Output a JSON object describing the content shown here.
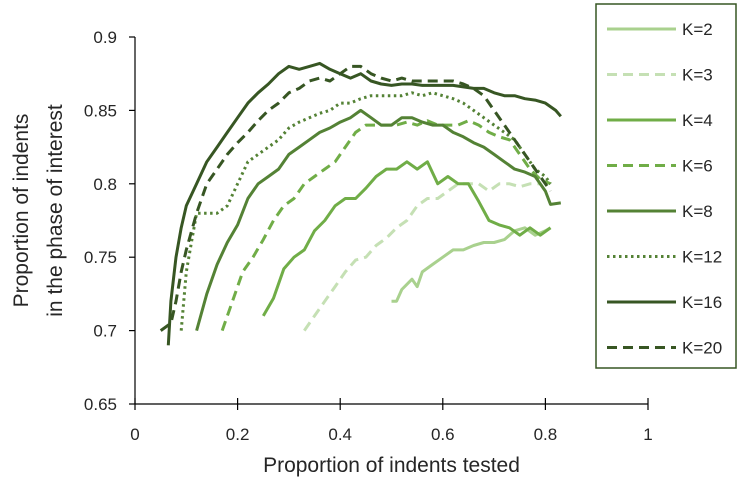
{
  "chart_data": {
    "type": "line",
    "title": "",
    "xlabel": "Proportion of indents tested",
    "ylabel_lines": [
      "Proportion of indents",
      "in the phase of interest"
    ],
    "xlim": [
      0,
      1
    ],
    "ylim": [
      0.65,
      0.9
    ],
    "x_ticks": [
      0,
      0.2,
      0.4,
      0.6,
      0.8,
      1
    ],
    "x_tick_labels": [
      "0",
      "0.2",
      "0.4",
      "0.6",
      "0.8",
      "1"
    ],
    "y_ticks": [
      0.65,
      0.7,
      0.75,
      0.8,
      0.85,
      0.9
    ],
    "y_tick_labels": [
      "0.65",
      "0.7",
      "0.75",
      "0.8",
      "0.85",
      "0.9"
    ],
    "grid": false,
    "legend_position": "right",
    "legend_border_color": "#375623",
    "series": [
      {
        "name": "K=2",
        "color": "#a9d18e",
        "dash": "solid",
        "x": [
          0.5,
          0.51,
          0.52,
          0.54,
          0.55,
          0.56,
          0.58,
          0.6,
          0.62,
          0.64,
          0.66,
          0.68,
          0.7,
          0.72,
          0.74,
          0.76,
          0.78,
          0.8,
          0.81
        ],
        "y": [
          0.72,
          0.72,
          0.728,
          0.735,
          0.73,
          0.74,
          0.745,
          0.75,
          0.755,
          0.755,
          0.758,
          0.76,
          0.76,
          0.762,
          0.768,
          0.77,
          0.765,
          0.768,
          0.77
        ]
      },
      {
        "name": "K=3",
        "color": "#c5e0b4",
        "dash": "dash",
        "x": [
          0.33,
          0.35,
          0.37,
          0.39,
          0.41,
          0.43,
          0.45,
          0.47,
          0.49,
          0.51,
          0.53,
          0.55,
          0.57,
          0.59,
          0.61,
          0.63,
          0.65,
          0.67,
          0.69,
          0.71,
          0.73,
          0.75,
          0.77,
          0.79
        ],
        "y": [
          0.7,
          0.71,
          0.72,
          0.73,
          0.74,
          0.748,
          0.75,
          0.758,
          0.763,
          0.77,
          0.775,
          0.785,
          0.79,
          0.79,
          0.795,
          0.8,
          0.8,
          0.8,
          0.795,
          0.8,
          0.8,
          0.798,
          0.8,
          0.8
        ]
      },
      {
        "name": "K=4",
        "color": "#70ad47",
        "dash": "solid",
        "x": [
          0.25,
          0.27,
          0.29,
          0.31,
          0.33,
          0.35,
          0.37,
          0.39,
          0.41,
          0.43,
          0.45,
          0.47,
          0.49,
          0.51,
          0.53,
          0.55,
          0.57,
          0.59,
          0.61,
          0.63,
          0.65,
          0.67,
          0.69,
          0.71,
          0.73,
          0.75,
          0.77,
          0.79,
          0.81
        ],
        "y": [
          0.71,
          0.722,
          0.742,
          0.75,
          0.755,
          0.768,
          0.775,
          0.785,
          0.79,
          0.79,
          0.797,
          0.805,
          0.81,
          0.81,
          0.815,
          0.81,
          0.815,
          0.8,
          0.805,
          0.8,
          0.8,
          0.788,
          0.775,
          0.772,
          0.77,
          0.765,
          0.77,
          0.765,
          0.77
        ]
      },
      {
        "name": "K=6",
        "color": "#70ad47",
        "dash": "dash",
        "x": [
          0.17,
          0.19,
          0.21,
          0.23,
          0.25,
          0.27,
          0.29,
          0.31,
          0.33,
          0.35,
          0.37,
          0.39,
          0.41,
          0.43,
          0.45,
          0.47,
          0.49,
          0.51,
          0.53,
          0.55,
          0.57,
          0.59,
          0.61,
          0.63,
          0.65,
          0.67,
          0.69,
          0.71,
          0.73,
          0.75,
          0.77,
          0.79,
          0.81
        ],
        "y": [
          0.7,
          0.72,
          0.74,
          0.75,
          0.762,
          0.775,
          0.785,
          0.79,
          0.8,
          0.805,
          0.81,
          0.815,
          0.825,
          0.835,
          0.84,
          0.84,
          0.84,
          0.84,
          0.842,
          0.84,
          0.843,
          0.84,
          0.84,
          0.84,
          0.843,
          0.84,
          0.835,
          0.832,
          0.83,
          0.82,
          0.81,
          0.803,
          0.8
        ]
      },
      {
        "name": "K=8",
        "color": "#548235",
        "dash": "solid",
        "x": [
          0.12,
          0.14,
          0.16,
          0.18,
          0.2,
          0.22,
          0.24,
          0.26,
          0.28,
          0.3,
          0.32,
          0.34,
          0.36,
          0.38,
          0.4,
          0.42,
          0.44,
          0.46,
          0.48,
          0.5,
          0.52,
          0.54,
          0.56,
          0.58,
          0.6,
          0.62,
          0.64,
          0.66,
          0.68,
          0.7,
          0.72,
          0.74,
          0.76,
          0.78,
          0.8,
          0.81,
          0.83
        ],
        "y": [
          0.7,
          0.725,
          0.745,
          0.76,
          0.772,
          0.79,
          0.8,
          0.805,
          0.81,
          0.82,
          0.825,
          0.83,
          0.835,
          0.838,
          0.842,
          0.845,
          0.85,
          0.845,
          0.84,
          0.84,
          0.845,
          0.845,
          0.842,
          0.84,
          0.84,
          0.835,
          0.832,
          0.828,
          0.825,
          0.82,
          0.815,
          0.81,
          0.808,
          0.805,
          0.795,
          0.786,
          0.787
        ]
      },
      {
        "name": "K=12",
        "color": "#548235",
        "dash": "dot",
        "x": [
          0.09,
          0.1,
          0.11,
          0.12,
          0.14,
          0.16,
          0.18,
          0.2,
          0.22,
          0.24,
          0.26,
          0.28,
          0.3,
          0.32,
          0.34,
          0.36,
          0.38,
          0.4,
          0.42,
          0.44,
          0.46,
          0.48,
          0.5,
          0.52,
          0.54,
          0.56,
          0.58,
          0.6,
          0.62,
          0.64,
          0.66,
          0.68,
          0.7,
          0.72,
          0.74,
          0.76,
          0.78,
          0.8,
          0.81
        ],
        "y": [
          0.7,
          0.74,
          0.76,
          0.78,
          0.78,
          0.78,
          0.785,
          0.8,
          0.815,
          0.82,
          0.825,
          0.83,
          0.838,
          0.842,
          0.845,
          0.848,
          0.85,
          0.855,
          0.855,
          0.858,
          0.86,
          0.86,
          0.86,
          0.86,
          0.862,
          0.86,
          0.862,
          0.86,
          0.858,
          0.855,
          0.85,
          0.845,
          0.84,
          0.835,
          0.83,
          0.82,
          0.81,
          0.805,
          0.8
        ]
      },
      {
        "name": "K=16",
        "color": "#375623",
        "dash": "solid",
        "x": [
          0.065,
          0.07,
          0.08,
          0.09,
          0.1,
          0.12,
          0.14,
          0.16,
          0.18,
          0.2,
          0.22,
          0.24,
          0.26,
          0.28,
          0.3,
          0.32,
          0.34,
          0.36,
          0.38,
          0.4,
          0.42,
          0.44,
          0.46,
          0.48,
          0.5,
          0.52,
          0.54,
          0.56,
          0.58,
          0.6,
          0.62,
          0.64,
          0.66,
          0.68,
          0.7,
          0.72,
          0.74,
          0.76,
          0.78,
          0.8,
          0.82,
          0.83
        ],
        "y": [
          0.69,
          0.72,
          0.75,
          0.77,
          0.785,
          0.8,
          0.815,
          0.825,
          0.835,
          0.845,
          0.855,
          0.862,
          0.868,
          0.875,
          0.88,
          0.878,
          0.88,
          0.882,
          0.878,
          0.875,
          0.872,
          0.875,
          0.87,
          0.868,
          0.867,
          0.868,
          0.868,
          0.867,
          0.867,
          0.867,
          0.867,
          0.866,
          0.865,
          0.865,
          0.862,
          0.86,
          0.86,
          0.858,
          0.857,
          0.855,
          0.85,
          0.846
        ]
      },
      {
        "name": "K=20",
        "color": "#375623",
        "dash": "dash",
        "x": [
          0.05,
          0.07,
          0.08,
          0.09,
          0.1,
          0.12,
          0.14,
          0.16,
          0.18,
          0.2,
          0.22,
          0.24,
          0.26,
          0.28,
          0.3,
          0.32,
          0.34,
          0.36,
          0.38,
          0.4,
          0.42,
          0.44,
          0.46,
          0.48,
          0.5,
          0.52,
          0.54,
          0.56,
          0.58,
          0.6,
          0.62,
          0.64,
          0.66,
          0.68,
          0.7,
          0.72,
          0.74,
          0.76,
          0.78,
          0.8,
          0.81
        ],
        "y": [
          0.7,
          0.705,
          0.72,
          0.74,
          0.755,
          0.78,
          0.8,
          0.81,
          0.82,
          0.828,
          0.835,
          0.843,
          0.85,
          0.855,
          0.862,
          0.865,
          0.87,
          0.872,
          0.87,
          0.875,
          0.88,
          0.88,
          0.875,
          0.872,
          0.87,
          0.872,
          0.87,
          0.87,
          0.87,
          0.87,
          0.87,
          0.868,
          0.865,
          0.86,
          0.85,
          0.84,
          0.83,
          0.82,
          0.81,
          0.8,
          0.795
        ]
      }
    ]
  }
}
